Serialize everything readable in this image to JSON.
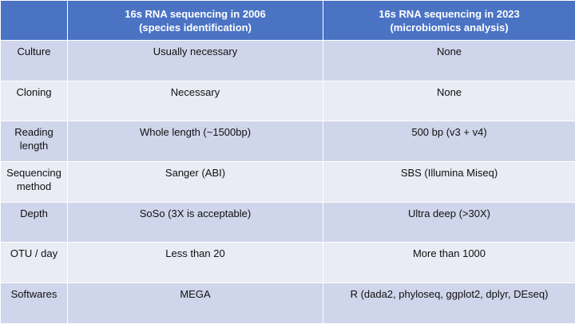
{
  "header": {
    "corner": "",
    "col_2006_line1": "16s RNA sequencing in 2006",
    "col_2006_line2": "(species identification)",
    "col_2023_line1": "16s RNA sequencing in 2023",
    "col_2023_line2": "(microbiomics analysis)"
  },
  "rows": [
    {
      "label_line1": "Culture",
      "label_line2": "",
      "v2006": "Usually necessary",
      "v2023": "None"
    },
    {
      "label_line1": "Cloning",
      "label_line2": "",
      "v2006": "Necessary",
      "v2023": "None"
    },
    {
      "label_line1": "Reading",
      "label_line2": "length",
      "v2006": "Whole length (~1500bp)",
      "v2023": "500 bp (v3 + v4)"
    },
    {
      "label_line1": "Sequencing",
      "label_line2": "method",
      "v2006": "Sanger (ABI)",
      "v2023": "SBS (Illumina Miseq)"
    },
    {
      "label_line1": "Depth",
      "label_line2": "",
      "v2006": "SoSo (3X is acceptable)",
      "v2023": "Ultra deep (>30X)"
    },
    {
      "label_line1": "OTU / day",
      "label_line2": "",
      "v2006": "Less than 20",
      "v2023": "More than 1000"
    },
    {
      "label_line1": "Softwares",
      "label_line2": "",
      "v2006": "MEGA",
      "v2023": "R (dada2, phyloseq, ggplot2, dplyr, DEseq)"
    }
  ],
  "colors": {
    "header_bg": "#4a73c4",
    "row_odd_bg": "#cfd5ea",
    "row_even_bg": "#e9ebf5"
  }
}
